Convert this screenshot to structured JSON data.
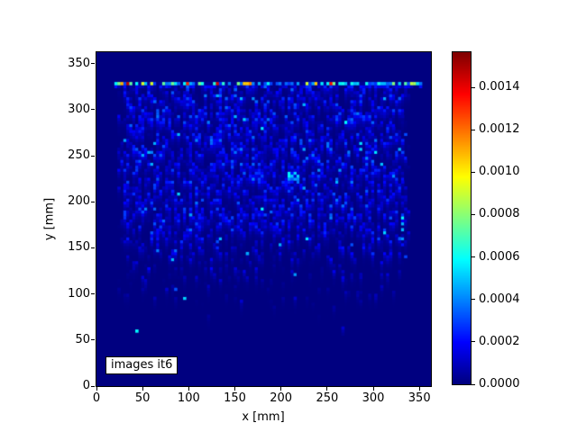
{
  "window": {
    "background": "#ffffff"
  },
  "chart_data": {
    "type": "heatmap",
    "title": "",
    "xlabel": "x [mm]",
    "ylabel": "y [mm]",
    "xlim": [
      0,
      362.5
    ],
    "ylim": [
      0,
      362.5
    ],
    "xticks": [
      0,
      50,
      100,
      150,
      200,
      250,
      300,
      350
    ],
    "yticks": [
      0,
      50,
      100,
      150,
      200,
      250,
      300,
      350
    ],
    "grid": "off",
    "colormap": "jet",
    "background_value_color": "#000080",
    "vmin": 0.0,
    "vmax": 0.001566,
    "annotation": "images it6",
    "colorbar": {
      "position": "right",
      "tick_values": [
        0.0,
        0.0002,
        0.0004,
        0.0006,
        0.0008,
        0.001,
        0.0012,
        0.0014
      ],
      "tick_labels": [
        "0.0000",
        "0.0002",
        "0.0004",
        "0.0006",
        "0.0008",
        "0.0010",
        "0.0012",
        "0.0014"
      ]
    },
    "heatmap": {
      "cols": 112,
      "rows": 112,
      "cell_mm": 3.2366,
      "seed": 20177,
      "band": {
        "y_mm": 330,
        "x_range_mm": [
          20,
          352
        ],
        "description": "bright horizontal source line: mostly cyan/blue cells with scattered green, yellow, orange and red cells, small dark gaps",
        "value_range": [
          0.00025,
          0.001566
        ],
        "hot_prob": 0.13
      },
      "underband_row_max_value": 0.00022,
      "speckle": {
        "x_range_mm": [
          21,
          340
        ],
        "description": "vertically-streaked blue speckle, densest for y 160-320 mm, fading out below y 150 mm, empty above the band",
        "typical_value_range": [
          2e-05,
          0.00032
        ],
        "bright_spark_value_range": [
          0.0003,
          0.0006
        ],
        "envelope_y_weight": [
          [
            55,
            0
          ],
          [
            90,
            0.05
          ],
          [
            120,
            0.22
          ],
          [
            150,
            0.55
          ],
          [
            175,
            0.85
          ],
          [
            200,
            1.0
          ],
          [
            290,
            1.0
          ],
          [
            310,
            0.92
          ],
          [
            326,
            0.9
          ]
        ]
      },
      "hotspots": [
        {
          "x": 214,
          "y": 228,
          "w": 12,
          "h": 14,
          "v": 0.0006
        },
        {
          "x": 331,
          "y": 170,
          "w": 4,
          "h": 40,
          "v": 0.00045
        },
        {
          "x": 331,
          "y": 183,
          "w": 3,
          "h": 3,
          "v": 0.00102
        },
        {
          "x": 60,
          "y": 256,
          "w": 4,
          "h": 4,
          "v": 0.00048
        },
        {
          "x": 160,
          "y": 292,
          "w": 4,
          "h": 5,
          "v": 0.00042
        },
        {
          "x": 118,
          "y": 250,
          "w": 3,
          "h": 3,
          "v": 0.0004
        }
      ]
    }
  }
}
